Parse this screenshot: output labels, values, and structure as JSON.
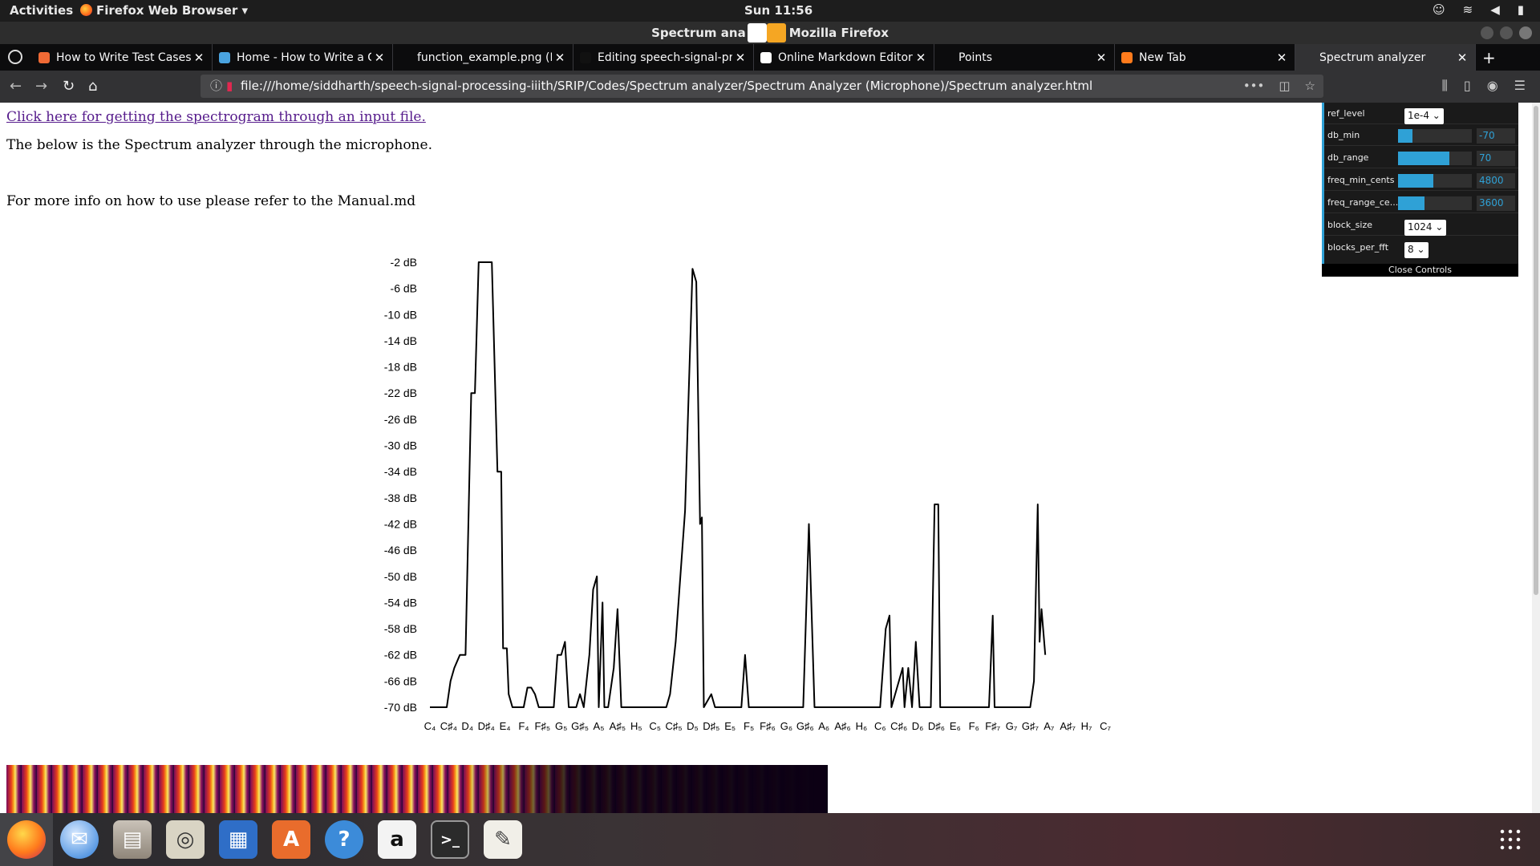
{
  "topbar": {
    "activities": "Activities",
    "app_menu": "Firefox Web Browser ▾",
    "clock": "Sun 11:56"
  },
  "window": {
    "title_left": "Spectrum ana",
    "title_right": "Mozilla Firefox"
  },
  "tabs": [
    {
      "label": "How to Write Test Cases",
      "favicon_color": "#f06a35",
      "active": false
    },
    {
      "label": "Home - How to Write a G",
      "favicon_color": "#4aa3df",
      "active": false
    },
    {
      "label": "function_example.png (PNG",
      "favicon_color": "#00000000",
      "active": false
    },
    {
      "label": "Editing speech-signal-pr",
      "favicon_color": "#111111",
      "active": false
    },
    {
      "label": "Online Markdown Editor",
      "favicon_color": "#ffffff",
      "active": false
    },
    {
      "label": "Points",
      "favicon_color": "#00000000",
      "active": false
    },
    {
      "label": "New Tab",
      "favicon_color": "#ff7b1c",
      "active": false
    },
    {
      "label": "Spectrum analyzer",
      "favicon_color": "#00000000",
      "active": true
    }
  ],
  "url": "file:///home/siddharth/speech-signal-processing-iiith/SRIP/Codes/Spectrum analyzer/Spectrum Analyzer (Microphone)/Spectrum analyzer.html",
  "page": {
    "link_text": "Click here for getting the spectrogram through an input file.",
    "para1": "The below is the Spectrum analyzer through the microphone.",
    "para2": "For more info on how to use please refer to the Manual.md"
  },
  "controls": {
    "ref_level": {
      "label": "ref_level",
      "value": "1e-4 ⌄"
    },
    "db_min": {
      "label": "db_min",
      "value": "-70",
      "fraction": 0.2
    },
    "db_range": {
      "label": "db_range",
      "value": "70",
      "fraction": 0.7
    },
    "freq_min_cents": {
      "label": "freq_min_cents",
      "value": "4800",
      "fraction": 0.48
    },
    "freq_range_cents": {
      "label": "freq_range_ce...",
      "value": "3600",
      "fraction": 0.36
    },
    "block_size": {
      "label": "block_size",
      "value": "1024 ⌄"
    },
    "blocks_per_fft": {
      "label": "blocks_per_fft",
      "value": "8 ⌄"
    },
    "close": "Close Controls",
    "accent_color": "#2fa1d6"
  },
  "chart_data": {
    "type": "line",
    "ylabels": [
      "-2 dB",
      "-6 dB",
      "-10 dB",
      "-14 dB",
      "-18 dB",
      "-22 dB",
      "-26 dB",
      "-30 dB",
      "-34 dB",
      "-38 dB",
      "-42 dB",
      "-46 dB",
      "-50 dB",
      "-54 dB",
      "-58 dB",
      "-62 dB",
      "-66 dB",
      "-70 dB"
    ],
    "ylim": [
      -70,
      -2
    ],
    "xlabels": [
      "C₄",
      "C♯₄",
      "D₄",
      "D♯₄",
      "E₄",
      "F₄",
      "F♯₅",
      "G₅",
      "G♯₅",
      "A₅",
      "A♯₅",
      "H₅",
      "C₅",
      "C♯₅",
      "D₅",
      "D♯₅",
      "E₅",
      "F₅",
      "F♯₆",
      "G₆",
      "G♯₆",
      "A₆",
      "A♯₆",
      "H₆",
      "C₆",
      "C♯₆",
      "D₆",
      "D♯₆",
      "E₆",
      "F₆",
      "F♯₇",
      "G₇",
      "G♯₇",
      "A₇",
      "A♯₇",
      "H₇",
      "C₇"
    ],
    "xlim": [
      0,
      36
    ],
    "points": [
      [
        0.0,
        -70
      ],
      [
        0.9,
        -70
      ],
      [
        1.1,
        -66
      ],
      [
        1.3,
        -64
      ],
      [
        1.6,
        -62
      ],
      [
        1.9,
        -62
      ],
      [
        2.2,
        -22
      ],
      [
        2.4,
        -22
      ],
      [
        2.6,
        -2
      ],
      [
        3.3,
        -2
      ],
      [
        3.6,
        -34
      ],
      [
        3.8,
        -34
      ],
      [
        3.9,
        -61
      ],
      [
        4.1,
        -61
      ],
      [
        4.2,
        -68
      ],
      [
        4.4,
        -70
      ],
      [
        5.0,
        -70
      ],
      [
        5.2,
        -67
      ],
      [
        5.4,
        -67
      ],
      [
        5.6,
        -68
      ],
      [
        5.8,
        -70
      ],
      [
        6.6,
        -70
      ],
      [
        6.8,
        -62
      ],
      [
        7.0,
        -62
      ],
      [
        7.2,
        -60
      ],
      [
        7.4,
        -70
      ],
      [
        7.8,
        -70
      ],
      [
        8.0,
        -68
      ],
      [
        8.2,
        -70
      ],
      [
        8.5,
        -62
      ],
      [
        8.7,
        -52
      ],
      [
        8.9,
        -50
      ],
      [
        9.0,
        -70
      ],
      [
        9.2,
        -54
      ],
      [
        9.3,
        -70
      ],
      [
        9.5,
        -70
      ],
      [
        9.8,
        -64
      ],
      [
        10.0,
        -55
      ],
      [
        10.2,
        -70
      ],
      [
        12.6,
        -70
      ],
      [
        12.8,
        -68
      ],
      [
        13.1,
        -60
      ],
      [
        13.6,
        -40
      ],
      [
        14.0,
        -3
      ],
      [
        14.2,
        -5
      ],
      [
        14.4,
        -42
      ],
      [
        14.5,
        -41
      ],
      [
        14.6,
        -70
      ],
      [
        15.0,
        -68
      ],
      [
        15.2,
        -70
      ],
      [
        16.6,
        -70
      ],
      [
        16.8,
        -62
      ],
      [
        17.0,
        -70
      ],
      [
        19.9,
        -70
      ],
      [
        20.2,
        -42
      ],
      [
        20.5,
        -70
      ],
      [
        24.0,
        -70
      ],
      [
        24.3,
        -58
      ],
      [
        24.5,
        -56
      ],
      [
        24.6,
        -70
      ],
      [
        25.2,
        -64
      ],
      [
        25.3,
        -70
      ],
      [
        25.5,
        -64
      ],
      [
        25.7,
        -70
      ],
      [
        25.9,
        -60
      ],
      [
        26.1,
        -70
      ],
      [
        26.7,
        -70
      ],
      [
        26.9,
        -39
      ],
      [
        27.1,
        -39
      ],
      [
        27.2,
        -70
      ],
      [
        29.8,
        -70
      ],
      [
        30.0,
        -56
      ],
      [
        30.1,
        -70
      ],
      [
        32.0,
        -70
      ],
      [
        32.2,
        -66
      ],
      [
        32.4,
        -39
      ],
      [
        32.5,
        -60
      ],
      [
        32.6,
        -55
      ],
      [
        32.8,
        -62
      ]
    ]
  }
}
